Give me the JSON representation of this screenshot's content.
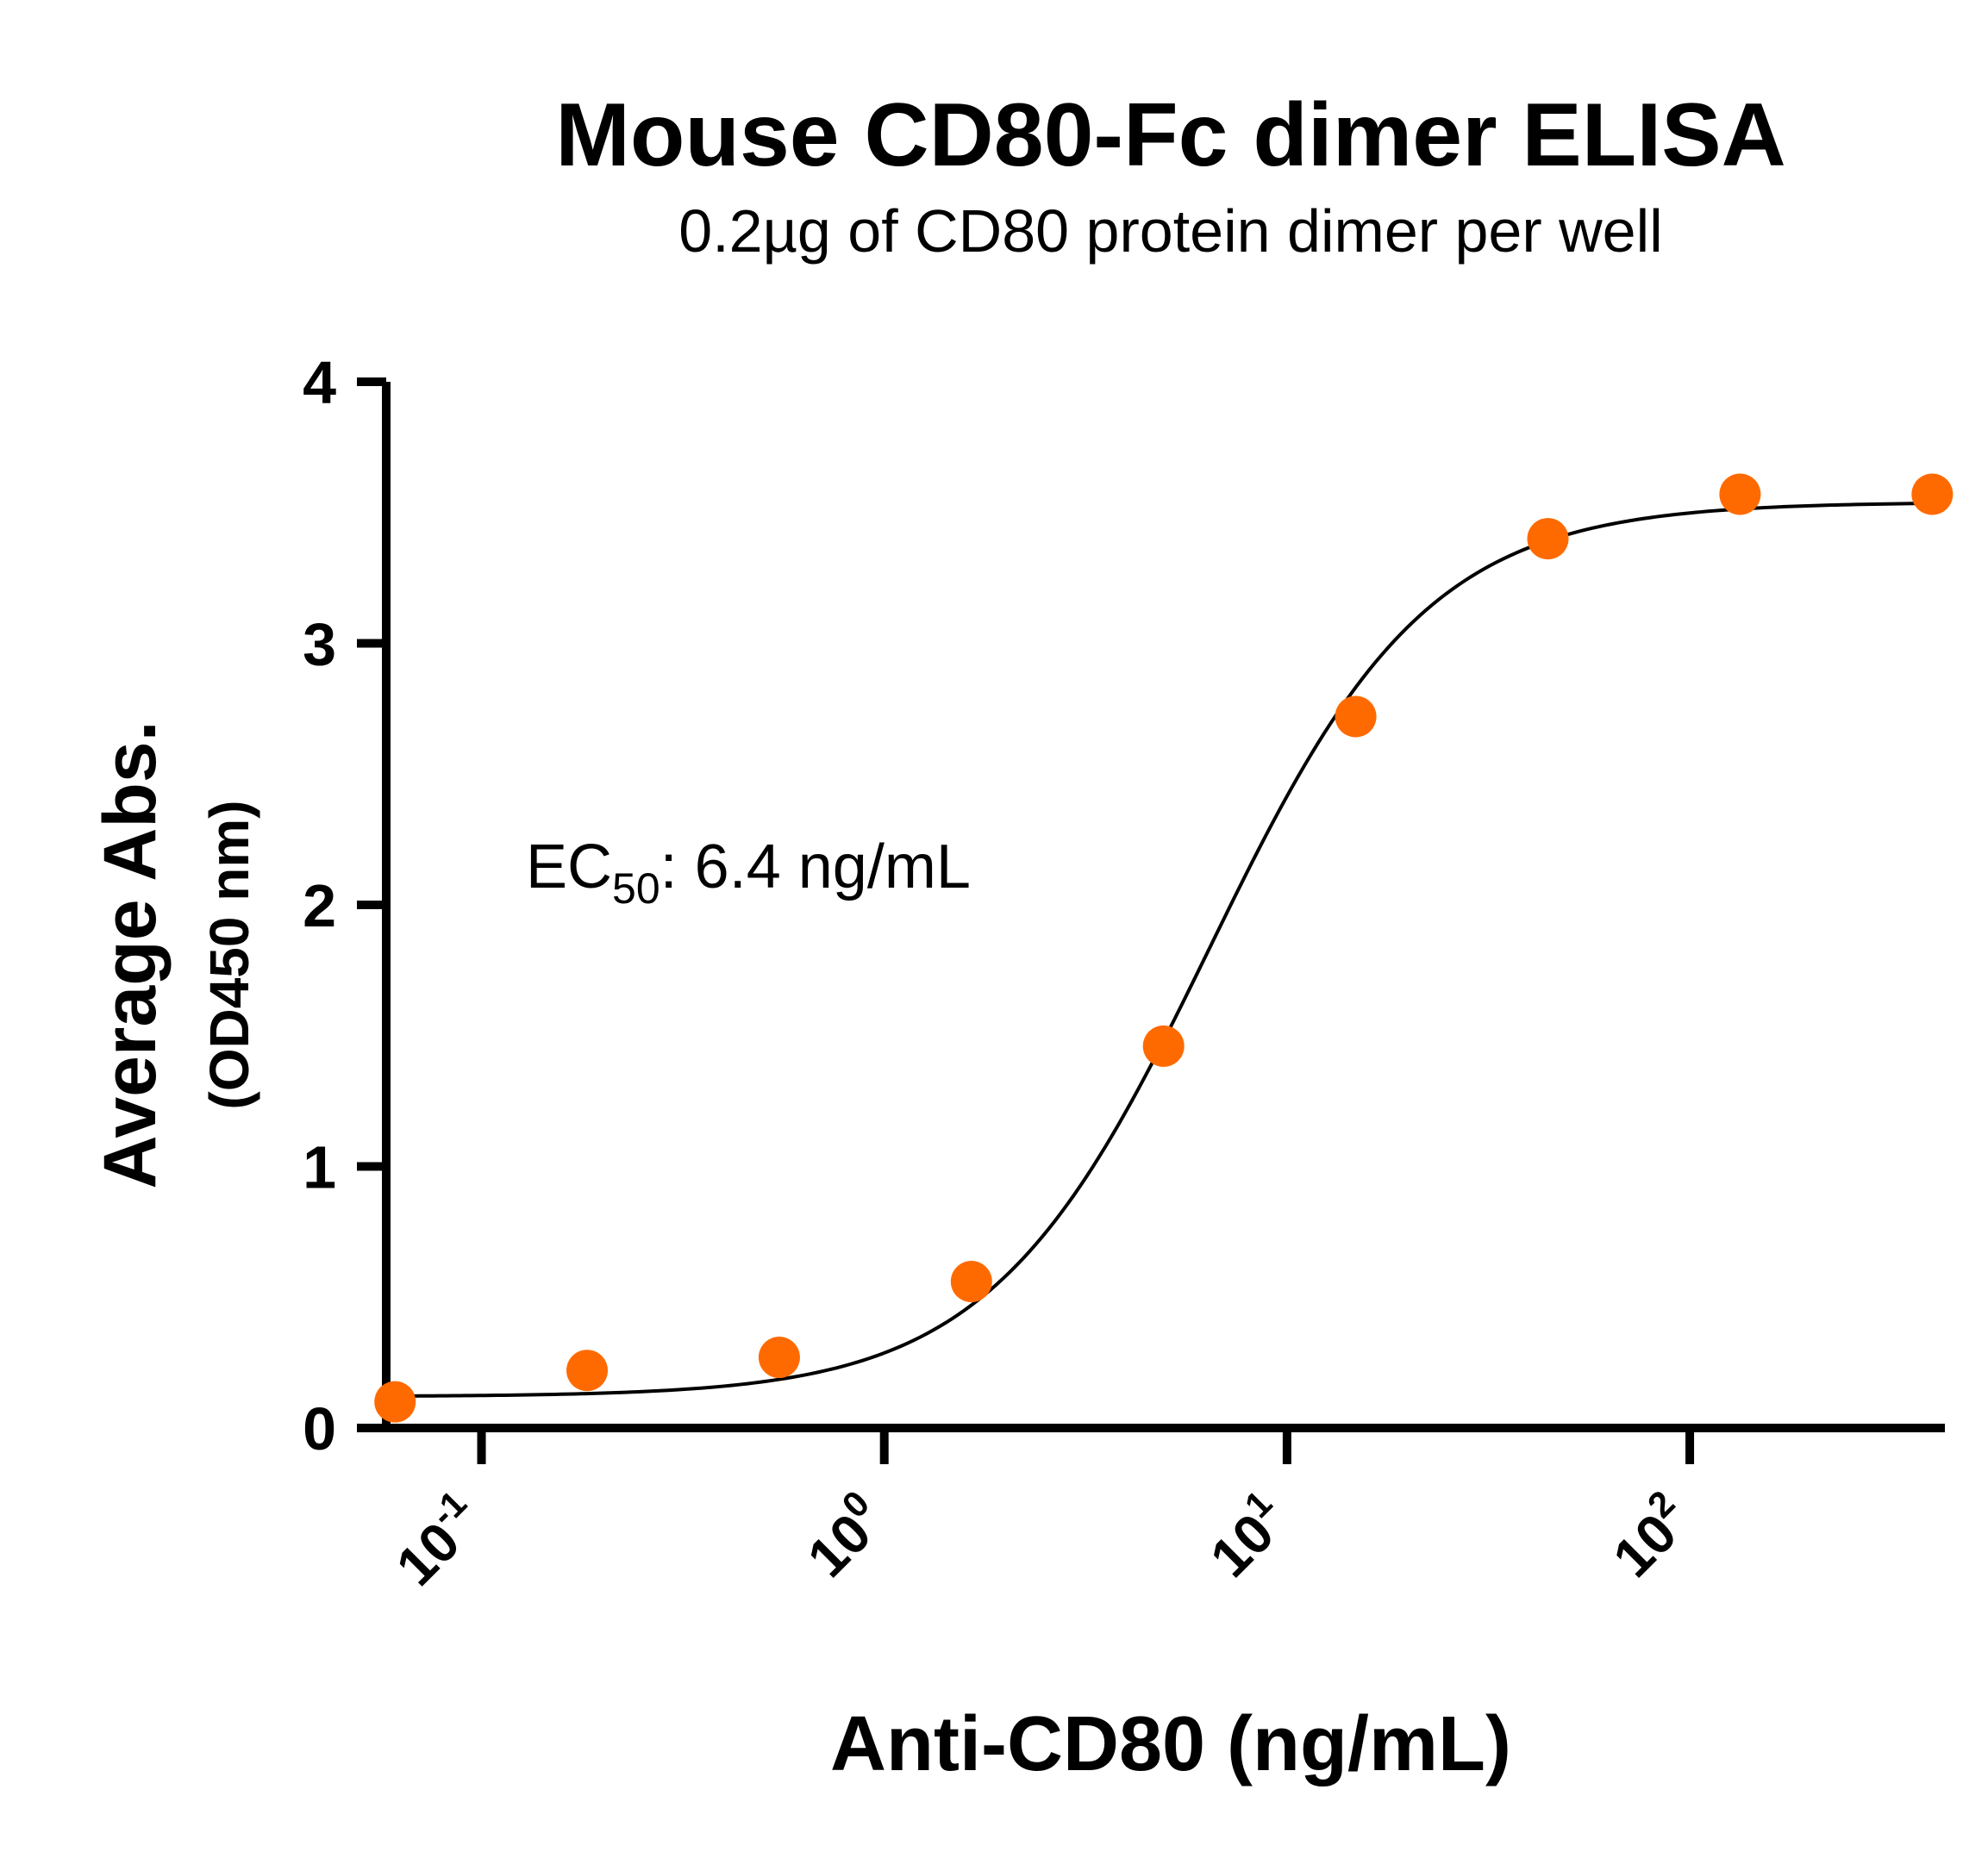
{
  "chart_data": {
    "type": "scatter",
    "title": "Mouse CD80-Fc dimer ELISA",
    "subtitle": "0.2µg of CD80 protein dimer per well",
    "xlabel": "Anti-CD80 (ng/mL)",
    "ylabel": "Average Abs.",
    "ylabel_secondary": "(OD450 nm)",
    "x_scale": "log",
    "x_ticks": [
      0.1,
      1,
      10,
      100
    ],
    "x_tick_labels": [
      {
        "base": "10",
        "exp": "-1"
      },
      {
        "base": "10",
        "exp": "0"
      },
      {
        "base": "10",
        "exp": "1"
      },
      {
        "base": "10",
        "exp": "2"
      }
    ],
    "y_ticks": [
      0,
      1,
      2,
      3,
      4
    ],
    "y_tick_labels": [
      "0",
      "1",
      "2",
      "3",
      "4"
    ],
    "ylim": [
      0,
      4
    ],
    "xlim": [
      0.058,
      430
    ],
    "grid": false,
    "annotation": {
      "prefix": "EC",
      "subscript": "50",
      "suffix": ": 6.4 ng/mL"
    },
    "marker_color": "#ff6a00",
    "line_color": "#000000",
    "points": {
      "x": [
        0.061,
        0.1829,
        0.5487,
        1.646,
        4.938,
        14.81,
        44.44,
        133.3,
        400
      ],
      "y": [
        0.1,
        0.22,
        0.27,
        0.56,
        1.46,
        2.72,
        3.4,
        3.57,
        3.57
      ]
    },
    "fit": {
      "type": "4PL",
      "bottom": 0.12,
      "top": 3.54,
      "ec50": 6.4,
      "hill": 1.6
    }
  }
}
